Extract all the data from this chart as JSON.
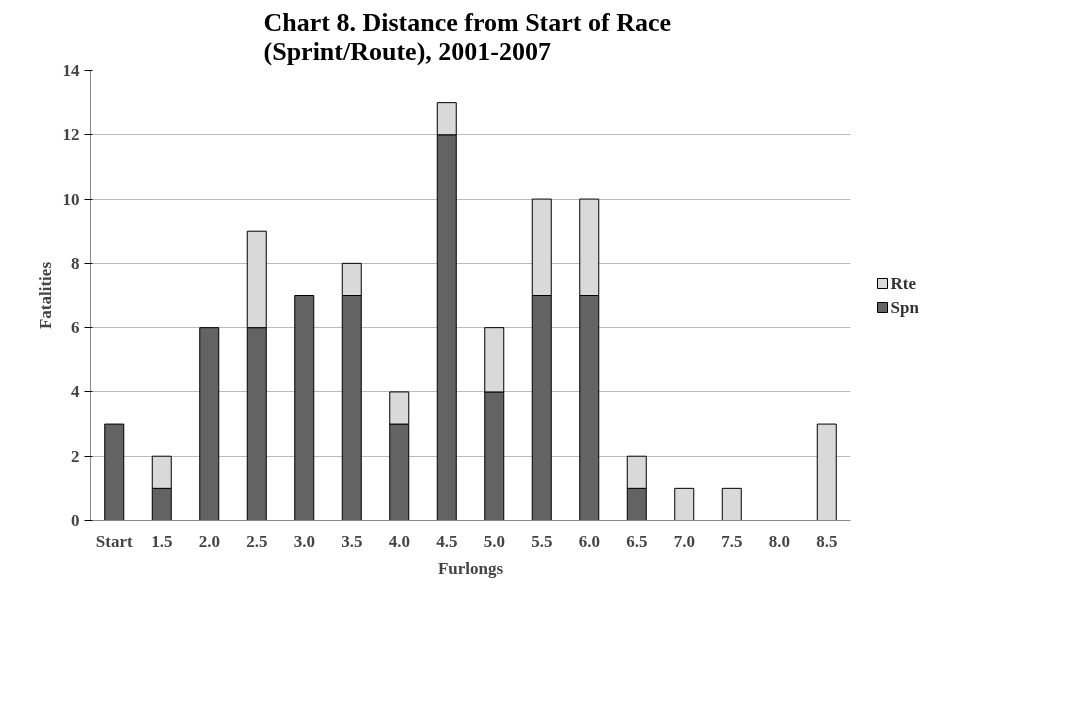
{
  "chart_data": {
    "type": "bar",
    "title": "Chart 8.  Distance from Start of Race\n(Sprint/Route), 2001-2007",
    "xlabel": "Furlongs",
    "ylabel": "Fatalities",
    "categories": [
      "Start",
      "1.5",
      "2.0",
      "2.5",
      "3.0",
      "3.5",
      "4.0",
      "4.5",
      "5.0",
      "5.5",
      "6.0",
      "6.5",
      "7.0",
      "7.5",
      "8.0",
      "8.5"
    ],
    "stacked": true,
    "series": [
      {
        "name": "Spn",
        "color": "#636363",
        "values": [
          3,
          1,
          6,
          6,
          7,
          7,
          3,
          12,
          4,
          7,
          7,
          1,
          0,
          0,
          0,
          0
        ]
      },
      {
        "name": "Rte",
        "color": "#d9d9d9",
        "values": [
          0,
          1,
          0,
          3,
          0,
          1,
          1,
          1,
          2,
          3,
          3,
          1,
          1,
          1,
          0,
          3
        ]
      }
    ],
    "ylim": [
      0,
      14
    ],
    "yticks": [
      0,
      2,
      4,
      6,
      8,
      10,
      12,
      14
    ],
    "grid": "y",
    "legend": "right"
  }
}
